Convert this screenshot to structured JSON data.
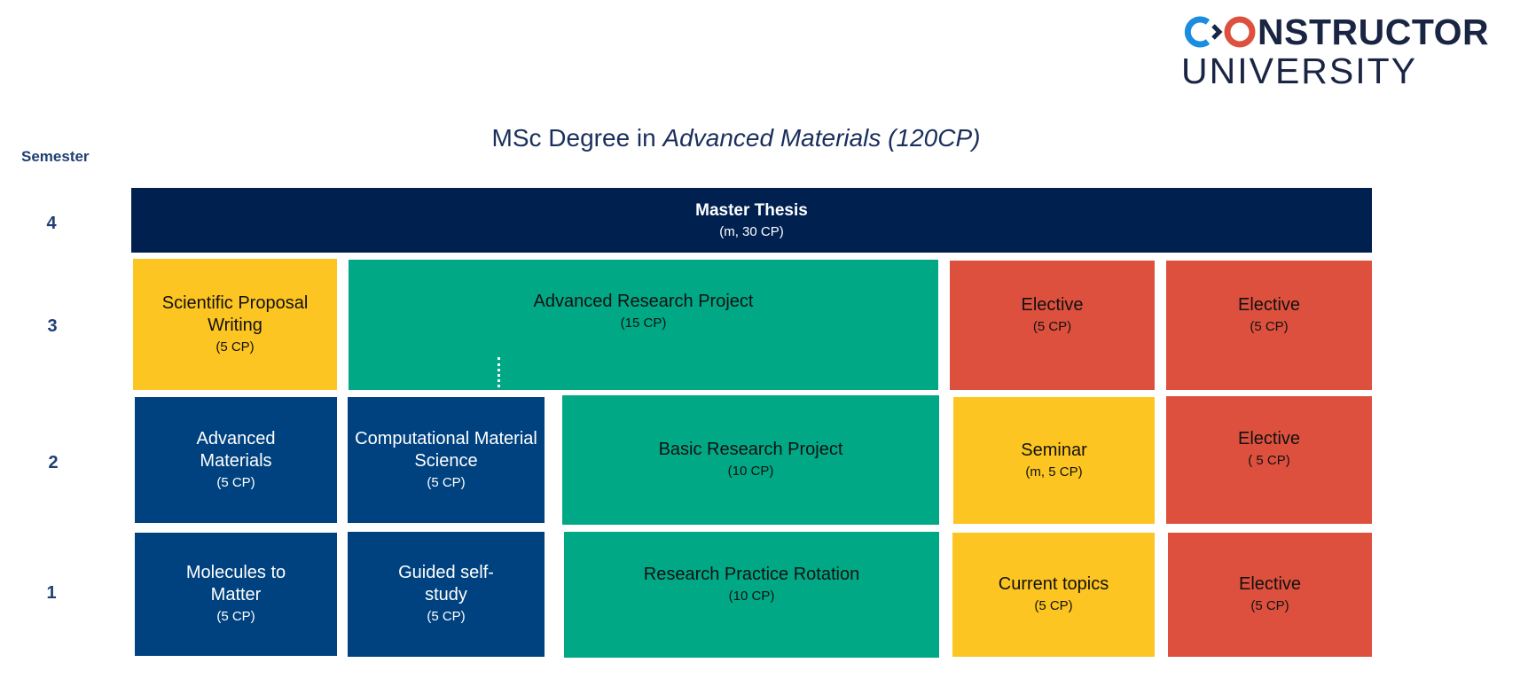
{
  "logo": {
    "text_line1": "CONSTRUCTOR",
    "text_line2": "UNIVERSITY",
    "accent_blue": "#1a8de0",
    "accent_red": "#dd503e"
  },
  "title": {
    "prefix": "MSc Degree in ",
    "program": "Advanced Materials (120CP)"
  },
  "semester_label": "Semester",
  "semesters": [
    "4",
    "3",
    "2",
    "1"
  ],
  "colors": {
    "thesis": "#002050",
    "core": "#00427f",
    "research": "#00a886",
    "skills": "#fdc521",
    "elective": "#dd503e"
  },
  "modules": {
    "master_thesis": {
      "title": "Master Thesis",
      "cp": "(m, 30 CP)"
    },
    "scientific_proposal": {
      "title": "Scientific Proposal Writing",
      "cp": "(5 CP)"
    },
    "advanced_research": {
      "title": "Advanced Research Project",
      "cp": "(15 CP)"
    },
    "elective_3a": {
      "title": "Elective",
      "cp": "(5 CP)"
    },
    "elective_3b": {
      "title": "Elective",
      "cp": "(5 CP)"
    },
    "advanced_materials": {
      "title": "Advanced Materials",
      "cp": "(5 CP)"
    },
    "computational": {
      "title": "Computational Material Science",
      "cp": "(5 CP)"
    },
    "basic_research": {
      "title": "Basic Research Project",
      "cp": "(10 CP)"
    },
    "seminar": {
      "title": "Seminar",
      "cp": "(m, 5 CP)"
    },
    "elective_2": {
      "title": "Elective",
      "cp": "( 5 CP)"
    },
    "molecules": {
      "title": "Molecules to Matter",
      "cp": "(5 CP)"
    },
    "guided": {
      "title": "Guided self-study",
      "cp": "(5 CP)"
    },
    "rotation": {
      "title": "Research Practice Rotation",
      "cp": "(10 CP)"
    },
    "current_topics": {
      "title": "Current topics",
      "cp": "(5 CP)"
    },
    "elective_1": {
      "title": "Elective",
      "cp": "(5 CP)"
    }
  }
}
